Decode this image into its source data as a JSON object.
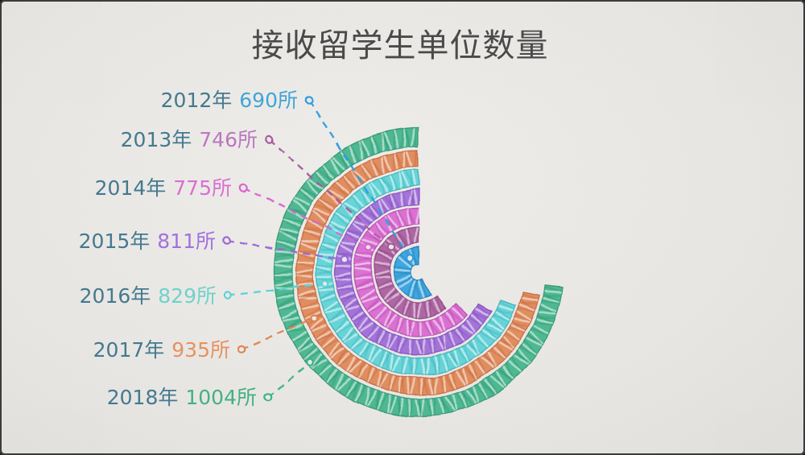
{
  "frame": {
    "paper_color": "#eae8e5",
    "border_color": "#383838"
  },
  "title": "接收留学生单位数量",
  "title_color": "#4a4a4a",
  "year_label_color": "#44798f",
  "unit": "所",
  "chart_data": {
    "type": "radial-bar",
    "title": "接收留学生单位数量",
    "unit": "所",
    "legend_position": "left-staggered-labels",
    "ring_order": "innermost 2012 to outermost 2018, arcs end at 12 o'clock and sweep counterclockwise",
    "categories": [
      "2012年",
      "2013年",
      "2014年",
      "2015年",
      "2016年",
      "2017年",
      "2018年"
    ],
    "values": [
      690,
      746,
      775,
      811,
      829,
      935,
      1004
    ],
    "series": [
      {
        "year": "2012年",
        "value": 690,
        "value_label": "690所",
        "color": "#2d9edf",
        "dark": "#1879ae",
        "text_color": "#41a5d8",
        "sweep_deg": 208
      },
      {
        "year": "2013年",
        "value": 746,
        "value_label": "746所",
        "color": "#a7599c",
        "dark": "#8a4080",
        "text_color": "#ba78be",
        "sweep_deg": 217
      },
      {
        "year": "2014年",
        "value": 775,
        "value_label": "775所",
        "color": "#d765cf",
        "dark": "#b441ab",
        "text_color": "#d96fd1",
        "sweep_deg": 229
      },
      {
        "year": "2015年",
        "value": 811,
        "value_label": "811所",
        "color": "#9b66d6",
        "dark": "#7c47ba",
        "text_color": "#a172dd",
        "sweep_deg": 242
      },
      {
        "year": "2016年",
        "value": 829,
        "value_label": "829所",
        "color": "#5ad1d6",
        "dark": "#33adb3",
        "text_color": "#70d2cb",
        "sweep_deg": 251
      },
      {
        "year": "2017年",
        "value": 935,
        "value_label": "935所",
        "color": "#df8351",
        "dark": "#bf6232",
        "text_color": "#e69260",
        "sweep_deg": 259
      },
      {
        "year": "2018年",
        "value": 1004,
        "value_label": "1004所",
        "color": "#3db289",
        "dark": "#279069",
        "text_color": "#43b183",
        "sweep_deg": 264
      }
    ]
  }
}
